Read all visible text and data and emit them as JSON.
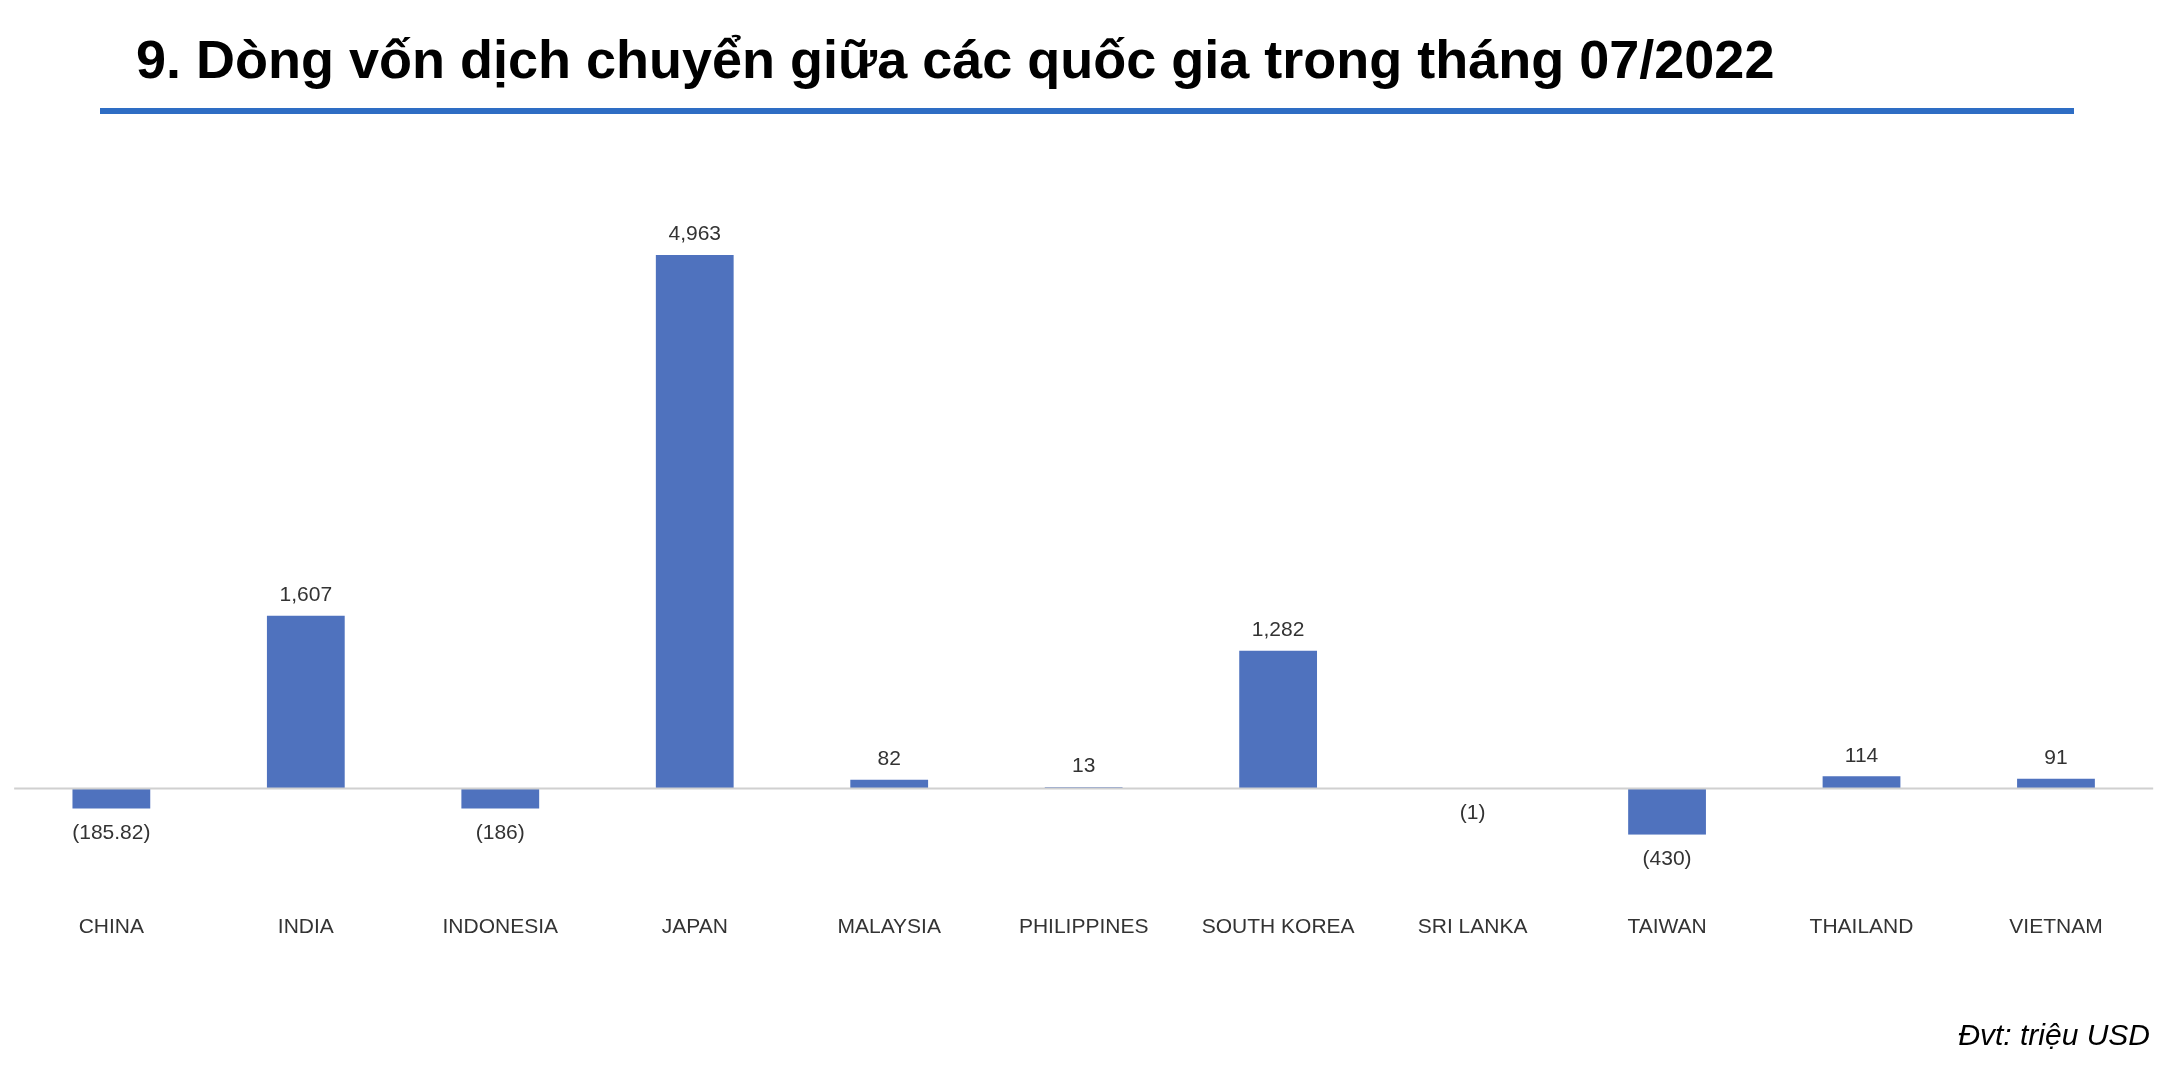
{
  "chart_data": {
    "type": "bar",
    "title": "9. Dòng vốn dịch chuyển giữa các quốc gia trong tháng 07/2022",
    "categories": [
      "CHINA",
      "INDIA",
      "INDONESIA",
      "JAPAN",
      "MALAYSIA",
      "PHILIPPINES",
      "SOUTH KOREA",
      "SRI LANKA",
      "TAIWAN",
      "THAILAND",
      "VIETNAM"
    ],
    "values": [
      -185.82,
      1607,
      -186,
      4963,
      82,
      13,
      1282,
      -1,
      -430,
      114,
      91
    ],
    "value_labels": [
      "(185.82)",
      "1,607",
      "(186)",
      "4,963",
      "82",
      "13",
      "1,282",
      "(1)",
      "(430)",
      "114",
      "91"
    ],
    "color": "#4f72be",
    "grid": false,
    "legend": false,
    "annotations": [
      "Đvt: triệu USD"
    ]
  }
}
